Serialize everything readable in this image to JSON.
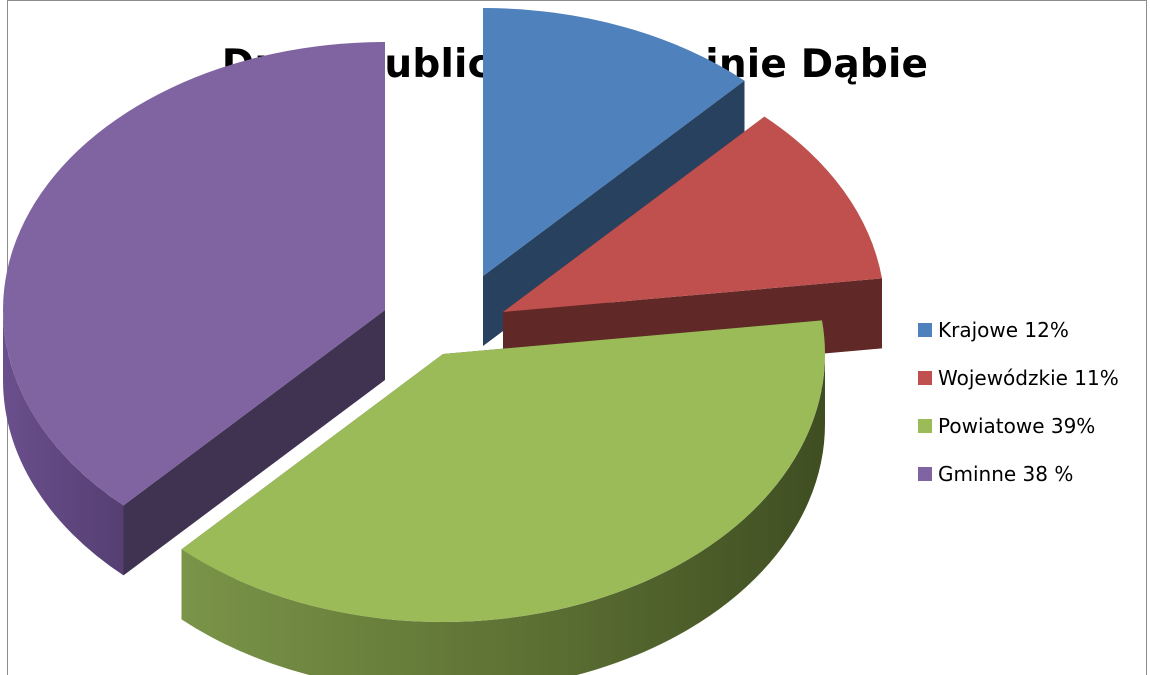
{
  "chart_data": {
    "type": "pie",
    "title": "Drogi publiczne w Gminie Dąbie",
    "three_d": true,
    "exploded": true,
    "slices": [
      {
        "label": "Krajowe 12%",
        "category": "Krajowe",
        "value": 12,
        "color": "#4f81bd"
      },
      {
        "label": "Wojewódzkie 11%",
        "category": "Wojewódzkie",
        "value": 11,
        "color": "#c0504d"
      },
      {
        "label": "Powiatowe 39%",
        "category": "Powiatowe",
        "value": 39,
        "color": "#9bbb59"
      },
      {
        "label": "Gminne 38 %",
        "category": "Gminne",
        "value": 38,
        "color": "#8064a2"
      }
    ],
    "legend_position": "right"
  }
}
